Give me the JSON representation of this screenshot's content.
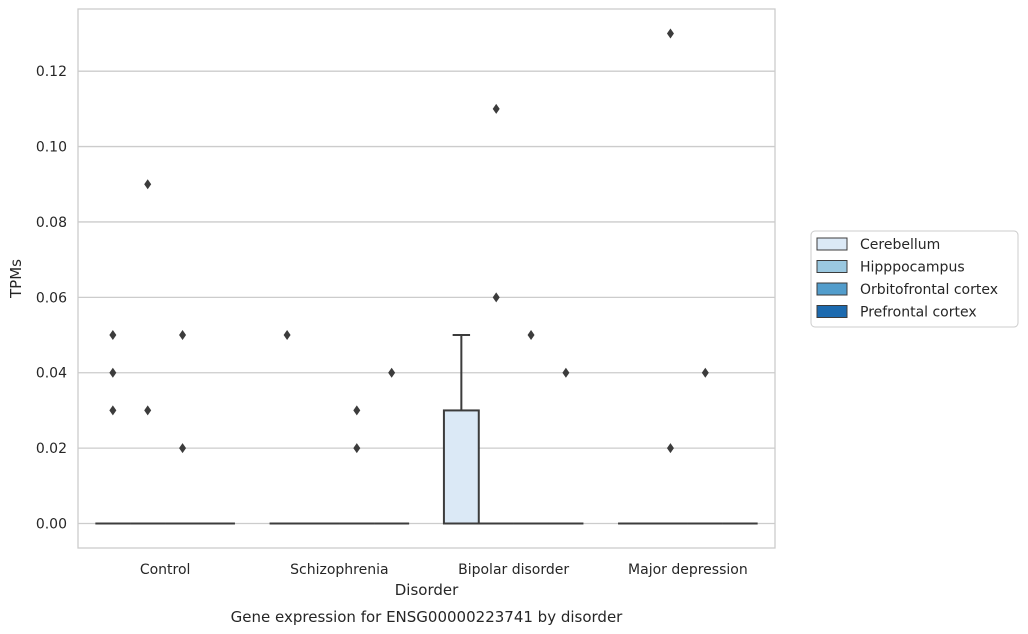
{
  "chart_data": {
    "type": "box",
    "title": "",
    "caption": "Gene expression for ENSG00000223741 by disorder",
    "xlabel": "Disorder",
    "ylabel": "TPMs",
    "ylim": [
      -0.0065,
      0.1365
    ],
    "yticks": [
      0.0,
      0.02,
      0.04,
      0.06,
      0.08,
      0.1,
      0.12
    ],
    "ytick_labels": [
      "0.00",
      "0.02",
      "0.04",
      "0.06",
      "0.08",
      "0.10",
      "0.12"
    ],
    "grid": "horizontal",
    "legend_position": "right",
    "categories": [
      "Control",
      "Schizophrenia",
      "Bipolar disorder",
      "Major depression"
    ],
    "series": [
      {
        "name": "Cerebellum",
        "color": "#dbe9f6",
        "boxes": [
          {
            "q1": 0,
            "median": 0,
            "q3": 0,
            "whisker_low": 0,
            "whisker_high": 0,
            "outliers": [
              0.03,
              0.04,
              0.05
            ]
          },
          {
            "q1": 0,
            "median": 0,
            "q3": 0,
            "whisker_low": 0,
            "whisker_high": 0,
            "outliers": [
              0.05
            ]
          },
          {
            "q1": 0,
            "median": 0,
            "q3": 0.03,
            "whisker_low": 0,
            "whisker_high": 0.05,
            "outliers": []
          },
          {
            "q1": 0,
            "median": 0,
            "q3": 0,
            "whisker_low": 0,
            "whisker_high": 0,
            "outliers": []
          }
        ]
      },
      {
        "name": "Hipppocampus",
        "color": "#9ac8e0",
        "boxes": [
          {
            "q1": 0,
            "median": 0,
            "q3": 0,
            "whisker_low": 0,
            "whisker_high": 0,
            "outliers": [
              0.03,
              0.09
            ]
          },
          {
            "q1": 0,
            "median": 0,
            "q3": 0,
            "whisker_low": 0,
            "whisker_high": 0,
            "outliers": []
          },
          {
            "q1": 0,
            "median": 0,
            "q3": 0,
            "whisker_low": 0,
            "whisker_high": 0,
            "outliers": [
              0.06,
              0.11
            ]
          },
          {
            "q1": 0,
            "median": 0,
            "q3": 0,
            "whisker_low": 0,
            "whisker_high": 0,
            "outliers": [
              0.02,
              0.13
            ]
          }
        ]
      },
      {
        "name": "Orbitofrontal cortex",
        "color": "#529dcc",
        "boxes": [
          {
            "q1": 0,
            "median": 0,
            "q3": 0,
            "whisker_low": 0,
            "whisker_high": 0,
            "outliers": [
              0.02,
              0.05
            ]
          },
          {
            "q1": 0,
            "median": 0,
            "q3": 0,
            "whisker_low": 0,
            "whisker_high": 0,
            "outliers": [
              0.02,
              0.03
            ]
          },
          {
            "q1": 0,
            "median": 0,
            "q3": 0,
            "whisker_low": 0,
            "whisker_high": 0,
            "outliers": [
              0.05
            ]
          },
          {
            "q1": 0,
            "median": 0,
            "q3": 0,
            "whisker_low": 0,
            "whisker_high": 0,
            "outliers": [
              0.04
            ]
          }
        ]
      },
      {
        "name": "Prefrontal cortex",
        "color": "#1c6aaf",
        "boxes": [
          {
            "q1": 0,
            "median": 0,
            "q3": 0,
            "whisker_low": 0,
            "whisker_high": 0,
            "outliers": []
          },
          {
            "q1": 0,
            "median": 0,
            "q3": 0,
            "whisker_low": 0,
            "whisker_high": 0,
            "outliers": [
              0.04
            ]
          },
          {
            "q1": 0,
            "median": 0,
            "q3": 0,
            "whisker_low": 0,
            "whisker_high": 0,
            "outliers": [
              0.04
            ]
          },
          {
            "q1": 0,
            "median": 0,
            "q3": 0,
            "whisker_low": 0,
            "whisker_high": 0,
            "outliers": []
          }
        ]
      }
    ]
  }
}
